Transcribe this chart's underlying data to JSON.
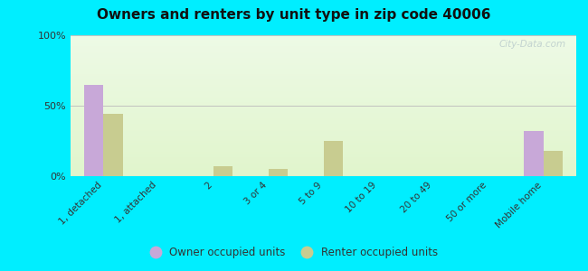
{
  "title": "Owners and renters by unit type in zip code 40006",
  "categories": [
    "1, detached",
    "1, attached",
    "2",
    "3 or 4",
    "5 to 9",
    "10 to 19",
    "20 to 49",
    "50 or more",
    "Mobile home"
  ],
  "owner_values": [
    65,
    0,
    0,
    0,
    0,
    0,
    0,
    0,
    32
  ],
  "renter_values": [
    44,
    0,
    7,
    5,
    25,
    0,
    0,
    0,
    18
  ],
  "owner_color": "#c8a8d8",
  "renter_color": "#c8cc90",
  "outer_bg": "#00eeff",
  "ylabel_ticks": [
    "0%",
    "50%",
    "100%"
  ],
  "ytick_vals": [
    0,
    50,
    100
  ],
  "ylim": [
    0,
    100
  ],
  "bar_width": 0.35,
  "legend_owner": "Owner occupied units",
  "legend_renter": "Renter occupied units",
  "watermark": "City-Data.com"
}
